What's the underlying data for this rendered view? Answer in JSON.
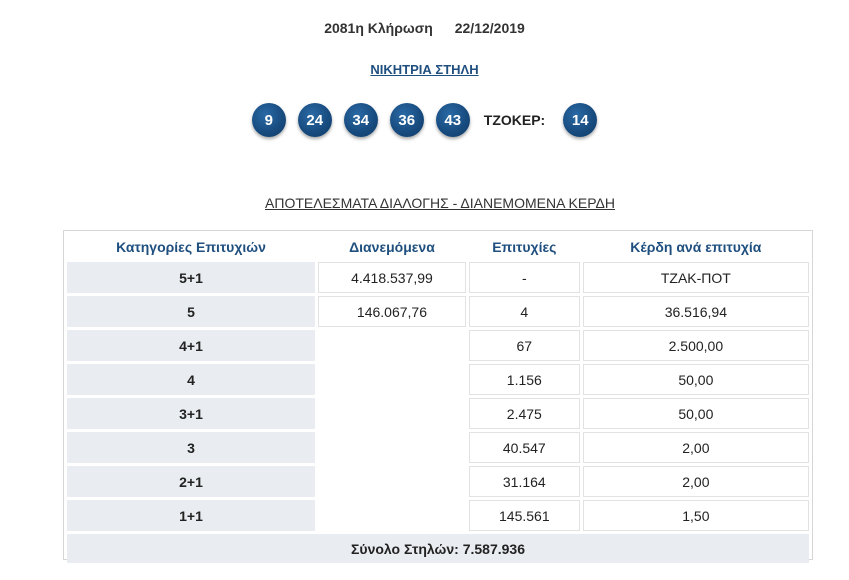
{
  "draw": {
    "number_label": "2081η Κλήρωση",
    "date": "22/12/2019"
  },
  "winning_link": "ΝΙΚΗΤΡΙΑ ΣΤΗΛΗ",
  "balls": [
    "9",
    "24",
    "34",
    "36",
    "43"
  ],
  "joker": {
    "label": "ΤΖΟΚΕΡ:",
    "number": "14"
  },
  "results_title": "ΑΠΟΤΕΛΕΣΜΑΤΑ ΔΙΑΛΟΓΗΣ - ΔΙΑΝΕΜΟΜΕΝΑ ΚΕΡΔΗ",
  "table": {
    "headers": [
      "Κατηγορίες Επιτυχιών",
      "Διανεμόμενα",
      "Επιτυχίες",
      "Κέρδη ανά επιτυχία"
    ],
    "rows": [
      {
        "category": "5+1",
        "distributed": "4.418.537,99",
        "winners": "-",
        "prize": "ΤΖΑΚ-ΠΟΤ"
      },
      {
        "category": "5",
        "distributed": "146.067,76",
        "winners": "4",
        "prize": "36.516,94"
      },
      {
        "category": "4+1",
        "distributed": "",
        "winners": "67",
        "prize": "2.500,00"
      },
      {
        "category": "4",
        "distributed": "",
        "winners": "1.156",
        "prize": "50,00"
      },
      {
        "category": "3+1",
        "distributed": "",
        "winners": "2.475",
        "prize": "50,00"
      },
      {
        "category": "3",
        "distributed": "",
        "winners": "40.547",
        "prize": "2,00"
      },
      {
        "category": "2+1",
        "distributed": "",
        "winners": "31.164",
        "prize": "2,00"
      },
      {
        "category": "1+1",
        "distributed": "",
        "winners": "145.561",
        "prize": "1,50"
      }
    ],
    "total": "Σύνολο Στηλών: 7.587.936"
  }
}
